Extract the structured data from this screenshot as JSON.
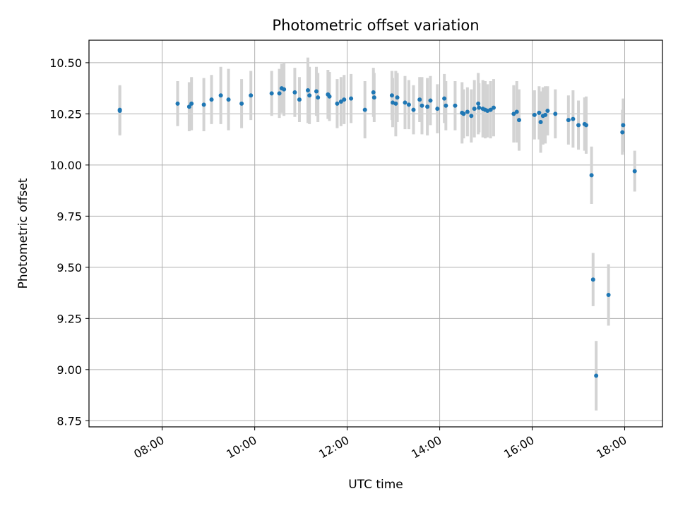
{
  "chart_data": {
    "type": "scatter",
    "title": "Photometric offset variation",
    "xlabel": "UTC time",
    "ylabel": "Photometric offset",
    "x_ticks": [
      "08:00",
      "10:00",
      "12:00",
      "14:00",
      "16:00",
      "18:00"
    ],
    "y_ticks": [
      "8.75",
      "9.00",
      "9.25",
      "9.50",
      "9.75",
      "10.00",
      "10.25",
      "10.50"
    ],
    "xlim": [
      "06:25",
      "18:49"
    ],
    "ylim": [
      8.72,
      10.61
    ],
    "grid": true,
    "colors": {
      "point": "#1f77b4",
      "errorbar": "#d3d3d3",
      "grid": "#b0b0b0"
    },
    "points": [
      {
        "x": "07:05",
        "y": 10.265,
        "err": 0.12
      },
      {
        "x": "07:05",
        "y": 10.27,
        "err": 0.12
      },
      {
        "x": "08:20",
        "y": 10.3,
        "err": 0.11
      },
      {
        "x": "08:35",
        "y": 10.285,
        "err": 0.12
      },
      {
        "x": "08:38",
        "y": 10.3,
        "err": 0.13
      },
      {
        "x": "08:54",
        "y": 10.295,
        "err": 0.13
      },
      {
        "x": "09:04",
        "y": 10.32,
        "err": 0.12
      },
      {
        "x": "09:16",
        "y": 10.34,
        "err": 0.14
      },
      {
        "x": "09:26",
        "y": 10.32,
        "err": 0.15
      },
      {
        "x": "09:43",
        "y": 10.3,
        "err": 0.12
      },
      {
        "x": "09:55",
        "y": 10.34,
        "err": 0.12
      },
      {
        "x": "10:22",
        "y": 10.35,
        "err": 0.11
      },
      {
        "x": "10:32",
        "y": 10.35,
        "err": 0.12
      },
      {
        "x": "10:35",
        "y": 10.375,
        "err": 0.12
      },
      {
        "x": "10:38",
        "y": 10.37,
        "err": 0.13
      },
      {
        "x": "10:52",
        "y": 10.355,
        "err": 0.12
      },
      {
        "x": "10:58",
        "y": 10.32,
        "err": 0.11
      },
      {
        "x": "11:09",
        "y": 10.365,
        "err": 0.16
      },
      {
        "x": "11:11",
        "y": 10.34,
        "err": 0.14
      },
      {
        "x": "11:20",
        "y": 10.36,
        "err": 0.12
      },
      {
        "x": "11:22",
        "y": 10.33,
        "err": 0.12
      },
      {
        "x": "11:35",
        "y": 10.345,
        "err": 0.12
      },
      {
        "x": "11:37",
        "y": 10.335,
        "err": 0.12
      },
      {
        "x": "11:47",
        "y": 10.3,
        "err": 0.12
      },
      {
        "x": "11:52",
        "y": 10.31,
        "err": 0.12
      },
      {
        "x": "11:56",
        "y": 10.32,
        "err": 0.12
      },
      {
        "x": "12:05",
        "y": 10.325,
        "err": 0.12
      },
      {
        "x": "12:23",
        "y": 10.27,
        "err": 0.14
      },
      {
        "x": "12:34",
        "y": 10.355,
        "err": 0.12
      },
      {
        "x": "12:35",
        "y": 10.33,
        "err": 0.12
      },
      {
        "x": "12:58",
        "y": 10.34,
        "err": 0.12
      },
      {
        "x": "12:59",
        "y": 10.305,
        "err": 0.12
      },
      {
        "x": "13:03",
        "y": 10.3,
        "err": 0.16
      },
      {
        "x": "13:05",
        "y": 10.33,
        "err": 0.12
      },
      {
        "x": "13:15",
        "y": 10.305,
        "err": 0.13
      },
      {
        "x": "13:20",
        "y": 10.295,
        "err": 0.12
      },
      {
        "x": "13:26",
        "y": 10.27,
        "err": 0.12
      },
      {
        "x": "13:34",
        "y": 10.32,
        "err": 0.11
      },
      {
        "x": "13:37",
        "y": 10.29,
        "err": 0.14
      },
      {
        "x": "13:44",
        "y": 10.285,
        "err": 0.14
      },
      {
        "x": "13:48",
        "y": 10.315,
        "err": 0.12
      },
      {
        "x": "13:57",
        "y": 10.275,
        "err": 0.12
      },
      {
        "x": "14:06",
        "y": 10.325,
        "err": 0.12
      },
      {
        "x": "14:08",
        "y": 10.29,
        "err": 0.12
      },
      {
        "x": "14:20",
        "y": 10.29,
        "err": 0.12
      },
      {
        "x": "14:29",
        "y": 10.255,
        "err": 0.15
      },
      {
        "x": "14:31",
        "y": 10.25,
        "err": 0.12
      },
      {
        "x": "14:36",
        "y": 10.26,
        "err": 0.12
      },
      {
        "x": "14:41",
        "y": 10.24,
        "err": 0.13
      },
      {
        "x": "14:45",
        "y": 10.275,
        "err": 0.14
      },
      {
        "x": "14:50",
        "y": 10.3,
        "err": 0.15
      },
      {
        "x": "14:51",
        "y": 10.28,
        "err": 0.12
      },
      {
        "x": "14:56",
        "y": 10.275,
        "err": 0.14
      },
      {
        "x": "14:59",
        "y": 10.27,
        "err": 0.14
      },
      {
        "x": "15:02",
        "y": 10.265,
        "err": 0.13
      },
      {
        "x": "15:06",
        "y": 10.27,
        "err": 0.14
      },
      {
        "x": "15:10",
        "y": 10.28,
        "err": 0.14
      },
      {
        "x": "15:36",
        "y": 10.25,
        "err": 0.14
      },
      {
        "x": "15:40",
        "y": 10.26,
        "err": 0.15
      },
      {
        "x": "15:43",
        "y": 10.22,
        "err": 0.15
      },
      {
        "x": "16:03",
        "y": 10.245,
        "err": 0.12
      },
      {
        "x": "16:09",
        "y": 10.255,
        "err": 0.13
      },
      {
        "x": "16:11",
        "y": 10.21,
        "err": 0.15
      },
      {
        "x": "16:14",
        "y": 10.24,
        "err": 0.14
      },
      {
        "x": "16:17",
        "y": 10.245,
        "err": 0.14
      },
      {
        "x": "16:20",
        "y": 10.265,
        "err": 0.12
      },
      {
        "x": "16:30",
        "y": 10.25,
        "err": 0.12
      },
      {
        "x": "16:47",
        "y": 10.22,
        "err": 0.12
      },
      {
        "x": "16:53",
        "y": 10.225,
        "err": 0.14
      },
      {
        "x": "17:00",
        "y": 10.195,
        "err": 0.12
      },
      {
        "x": "17:08",
        "y": 10.2,
        "err": 0.13
      },
      {
        "x": "17:10",
        "y": 10.195,
        "err": 0.14
      },
      {
        "x": "17:17",
        "y": 9.95,
        "err": 0.14
      },
      {
        "x": "17:19",
        "y": 9.44,
        "err": 0.13
      },
      {
        "x": "17:23",
        "y": 8.97,
        "err": 0.17
      },
      {
        "x": "17:39",
        "y": 9.365,
        "err": 0.15
      },
      {
        "x": "17:57",
        "y": 10.16,
        "err": 0.11
      },
      {
        "x": "17:58",
        "y": 10.195,
        "err": 0.13
      },
      {
        "x": "18:13",
        "y": 9.97,
        "err": 0.1
      }
    ]
  }
}
